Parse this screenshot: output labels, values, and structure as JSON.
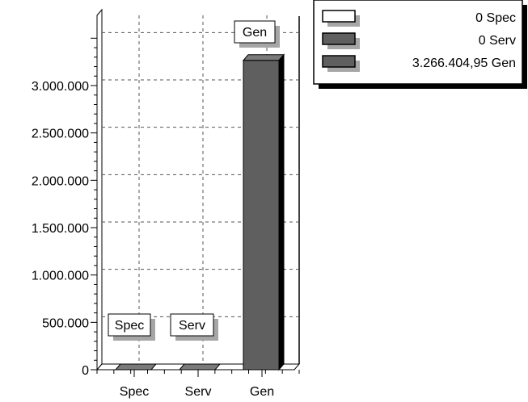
{
  "chart_data": {
    "type": "bar",
    "categories": [
      "Spec",
      "Serv",
      "Gen"
    ],
    "values": [
      0,
      0,
      3266404.95
    ],
    "ylim": [
      0,
      3500000
    ],
    "yticks": [
      0,
      500000,
      1000000,
      1500000,
      2000000,
      2500000,
      3000000
    ],
    "ytick_labels": [
      "0",
      "500.000",
      "1.000.000",
      "1.500.000",
      "2.000.000",
      "2.500.000",
      "3.000.000"
    ],
    "data_labels": [
      "Spec",
      "Serv",
      "Gen"
    ],
    "grid": true,
    "legend_position": "top-right",
    "legend": [
      {
        "value": "0",
        "label": "Spec",
        "color": "#ffffff"
      },
      {
        "value": "0",
        "label": "Serv",
        "color": "#5f5f5f"
      },
      {
        "value": "3.266.404,95",
        "label": "Gen",
        "color": "#5f5f5f"
      }
    ],
    "colors": {
      "spec": "#ffffff",
      "serv": "#5f5f5f",
      "gen": "#5f5f5f",
      "shadow": "#a6a6a6"
    }
  }
}
